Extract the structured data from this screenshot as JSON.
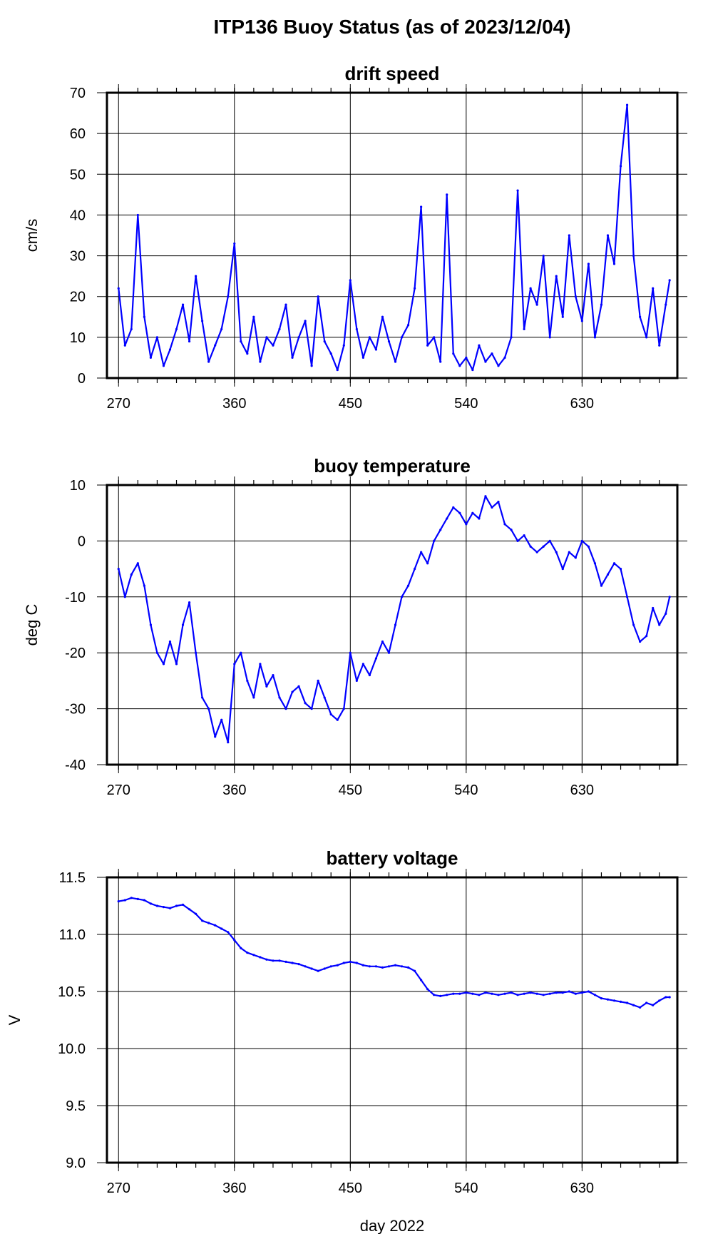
{
  "figure": {
    "title": "ITP136 Buoy Status (as of 2023/12/04)"
  },
  "colors": {
    "line": "#0000ff",
    "frame": "#000000",
    "grid": "#000000"
  },
  "chart_data": [
    {
      "type": "line",
      "title": "drift speed",
      "ylabel": "cm/s",
      "xlabel": "",
      "xlim": [
        261,
        704
      ],
      "ylim": [
        0,
        70
      ],
      "xticks": [
        270,
        360,
        450,
        540,
        630
      ],
      "yticks": [
        0,
        10,
        20,
        30,
        40,
        50,
        60,
        70
      ],
      "ytick_labels": [
        "0",
        "10",
        "20",
        "30",
        "40",
        "50",
        "60",
        "70"
      ],
      "grid": true,
      "series": [
        {
          "x": [
            270,
            275,
            280,
            285,
            290,
            295,
            300,
            305,
            310,
            315,
            320,
            325,
            330,
            335,
            340,
            345,
            350,
            355,
            360,
            365,
            370,
            375,
            380,
            385,
            390,
            395,
            400,
            405,
            410,
            415,
            420,
            425,
            430,
            435,
            440,
            445,
            450,
            455,
            460,
            465,
            470,
            475,
            480,
            485,
            490,
            495,
            500,
            505,
            510,
            515,
            520,
            525,
            530,
            535,
            540,
            545,
            550,
            555,
            560,
            565,
            570,
            575,
            580,
            585,
            590,
            595,
            600,
            605,
            610,
            615,
            620,
            625,
            630,
            635,
            640,
            645,
            650,
            655,
            660,
            665,
            670,
            675,
            680,
            685,
            690,
            695,
            698
          ],
          "y": [
            22,
            8,
            12,
            40,
            15,
            5,
            10,
            3,
            7,
            12,
            18,
            9,
            25,
            14,
            4,
            8,
            12,
            20,
            33,
            9,
            6,
            15,
            4,
            10,
            8,
            12,
            18,
            5,
            10,
            14,
            3,
            20,
            9,
            6,
            2,
            8,
            24,
            12,
            5,
            10,
            7,
            15,
            9,
            4,
            10,
            13,
            22,
            42,
            8,
            10,
            4,
            45,
            6,
            3,
            5,
            2,
            8,
            4,
            6,
            3,
            5,
            10,
            46,
            12,
            22,
            18,
            30,
            10,
            25,
            15,
            35,
            20,
            14,
            28,
            10,
            18,
            35,
            28,
            52,
            67,
            30,
            15,
            10,
            22,
            8,
            18,
            24
          ]
        }
      ]
    },
    {
      "type": "line",
      "title": "buoy temperature",
      "ylabel": "deg C",
      "xlabel": "",
      "xlim": [
        261,
        704
      ],
      "ylim": [
        -40,
        10
      ],
      "xticks": [
        270,
        360,
        450,
        540,
        630
      ],
      "yticks": [
        -40,
        -30,
        -20,
        -10,
        0,
        10
      ],
      "ytick_labels": [
        "-40",
        "-30",
        "-20",
        "-10",
        "0",
        "10"
      ],
      "grid": true,
      "series": [
        {
          "x": [
            270,
            275,
            280,
            285,
            290,
            295,
            300,
            305,
            310,
            315,
            320,
            325,
            330,
            335,
            340,
            345,
            350,
            355,
            360,
            365,
            370,
            375,
            380,
            385,
            390,
            395,
            400,
            405,
            410,
            415,
            420,
            425,
            430,
            435,
            440,
            445,
            450,
            455,
            460,
            465,
            470,
            475,
            480,
            485,
            490,
            495,
            500,
            505,
            510,
            515,
            520,
            525,
            530,
            535,
            540,
            545,
            550,
            555,
            560,
            565,
            570,
            575,
            580,
            585,
            590,
            595,
            600,
            605,
            610,
            615,
            620,
            625,
            630,
            635,
            640,
            645,
            650,
            655,
            660,
            665,
            670,
            675,
            680,
            685,
            690,
            695,
            698
          ],
          "y": [
            -5,
            -10,
            -6,
            -4,
            -8,
            -15,
            -20,
            -22,
            -18,
            -22,
            -15,
            -11,
            -20,
            -28,
            -30,
            -35,
            -32,
            -36,
            -22,
            -20,
            -25,
            -28,
            -22,
            -26,
            -24,
            -28,
            -30,
            -27,
            -26,
            -29,
            -30,
            -25,
            -28,
            -31,
            -32,
            -30,
            -20,
            -25,
            -22,
            -24,
            -21,
            -18,
            -20,
            -15,
            -10,
            -8,
            -5,
            -2,
            -4,
            0,
            2,
            4,
            6,
            5,
            3,
            5,
            4,
            8,
            6,
            7,
            3,
            2,
            0,
            1,
            -1,
            -2,
            -1,
            0,
            -2,
            -5,
            -2,
            -3,
            0,
            -1,
            -4,
            -8,
            -6,
            -4,
            -5,
            -10,
            -15,
            -18,
            -17,
            -12,
            -15,
            -13,
            -10
          ]
        }
      ]
    },
    {
      "type": "line",
      "title": "battery voltage",
      "ylabel": "V",
      "xlabel": "day 2022",
      "xlim": [
        261,
        704
      ],
      "ylim": [
        9.0,
        11.5
      ],
      "xticks": [
        270,
        360,
        450,
        540,
        630
      ],
      "yticks": [
        9.0,
        9.5,
        10.0,
        10.5,
        11.0,
        11.5
      ],
      "ytick_labels": [
        "9.0",
        "9.5",
        "10.0",
        "10.5",
        "11.0",
        "11.5"
      ],
      "grid": true,
      "series": [
        {
          "x": [
            270,
            275,
            280,
            285,
            290,
            295,
            300,
            305,
            310,
            315,
            320,
            325,
            330,
            335,
            340,
            345,
            350,
            355,
            360,
            365,
            370,
            375,
            380,
            385,
            390,
            395,
            400,
            405,
            410,
            415,
            420,
            425,
            430,
            435,
            440,
            445,
            450,
            455,
            460,
            465,
            470,
            475,
            480,
            485,
            490,
            495,
            500,
            505,
            510,
            515,
            520,
            525,
            530,
            535,
            540,
            545,
            550,
            555,
            560,
            565,
            570,
            575,
            580,
            585,
            590,
            595,
            600,
            605,
            610,
            615,
            620,
            625,
            630,
            635,
            640,
            645,
            650,
            655,
            660,
            665,
            670,
            675,
            680,
            685,
            690,
            695,
            698
          ],
          "y": [
            11.29,
            11.3,
            11.32,
            11.31,
            11.3,
            11.27,
            11.25,
            11.24,
            11.23,
            11.25,
            11.26,
            11.22,
            11.18,
            11.12,
            11.1,
            11.08,
            11.05,
            11.02,
            10.95,
            10.88,
            10.84,
            10.82,
            10.8,
            10.78,
            10.77,
            10.77,
            10.76,
            10.75,
            10.74,
            10.72,
            10.7,
            10.68,
            10.7,
            10.72,
            10.73,
            10.75,
            10.76,
            10.75,
            10.73,
            10.72,
            10.72,
            10.71,
            10.72,
            10.73,
            10.72,
            10.71,
            10.68,
            10.6,
            10.52,
            10.47,
            10.46,
            10.47,
            10.48,
            10.48,
            10.49,
            10.48,
            10.47,
            10.49,
            10.48,
            10.47,
            10.48,
            10.49,
            10.47,
            10.48,
            10.49,
            10.48,
            10.47,
            10.48,
            10.49,
            10.49,
            10.5,
            10.48,
            10.49,
            10.5,
            10.47,
            10.44,
            10.43,
            10.42,
            10.41,
            10.4,
            10.38,
            10.36,
            10.4,
            10.38,
            10.42,
            10.45,
            10.45
          ]
        }
      ]
    }
  ]
}
